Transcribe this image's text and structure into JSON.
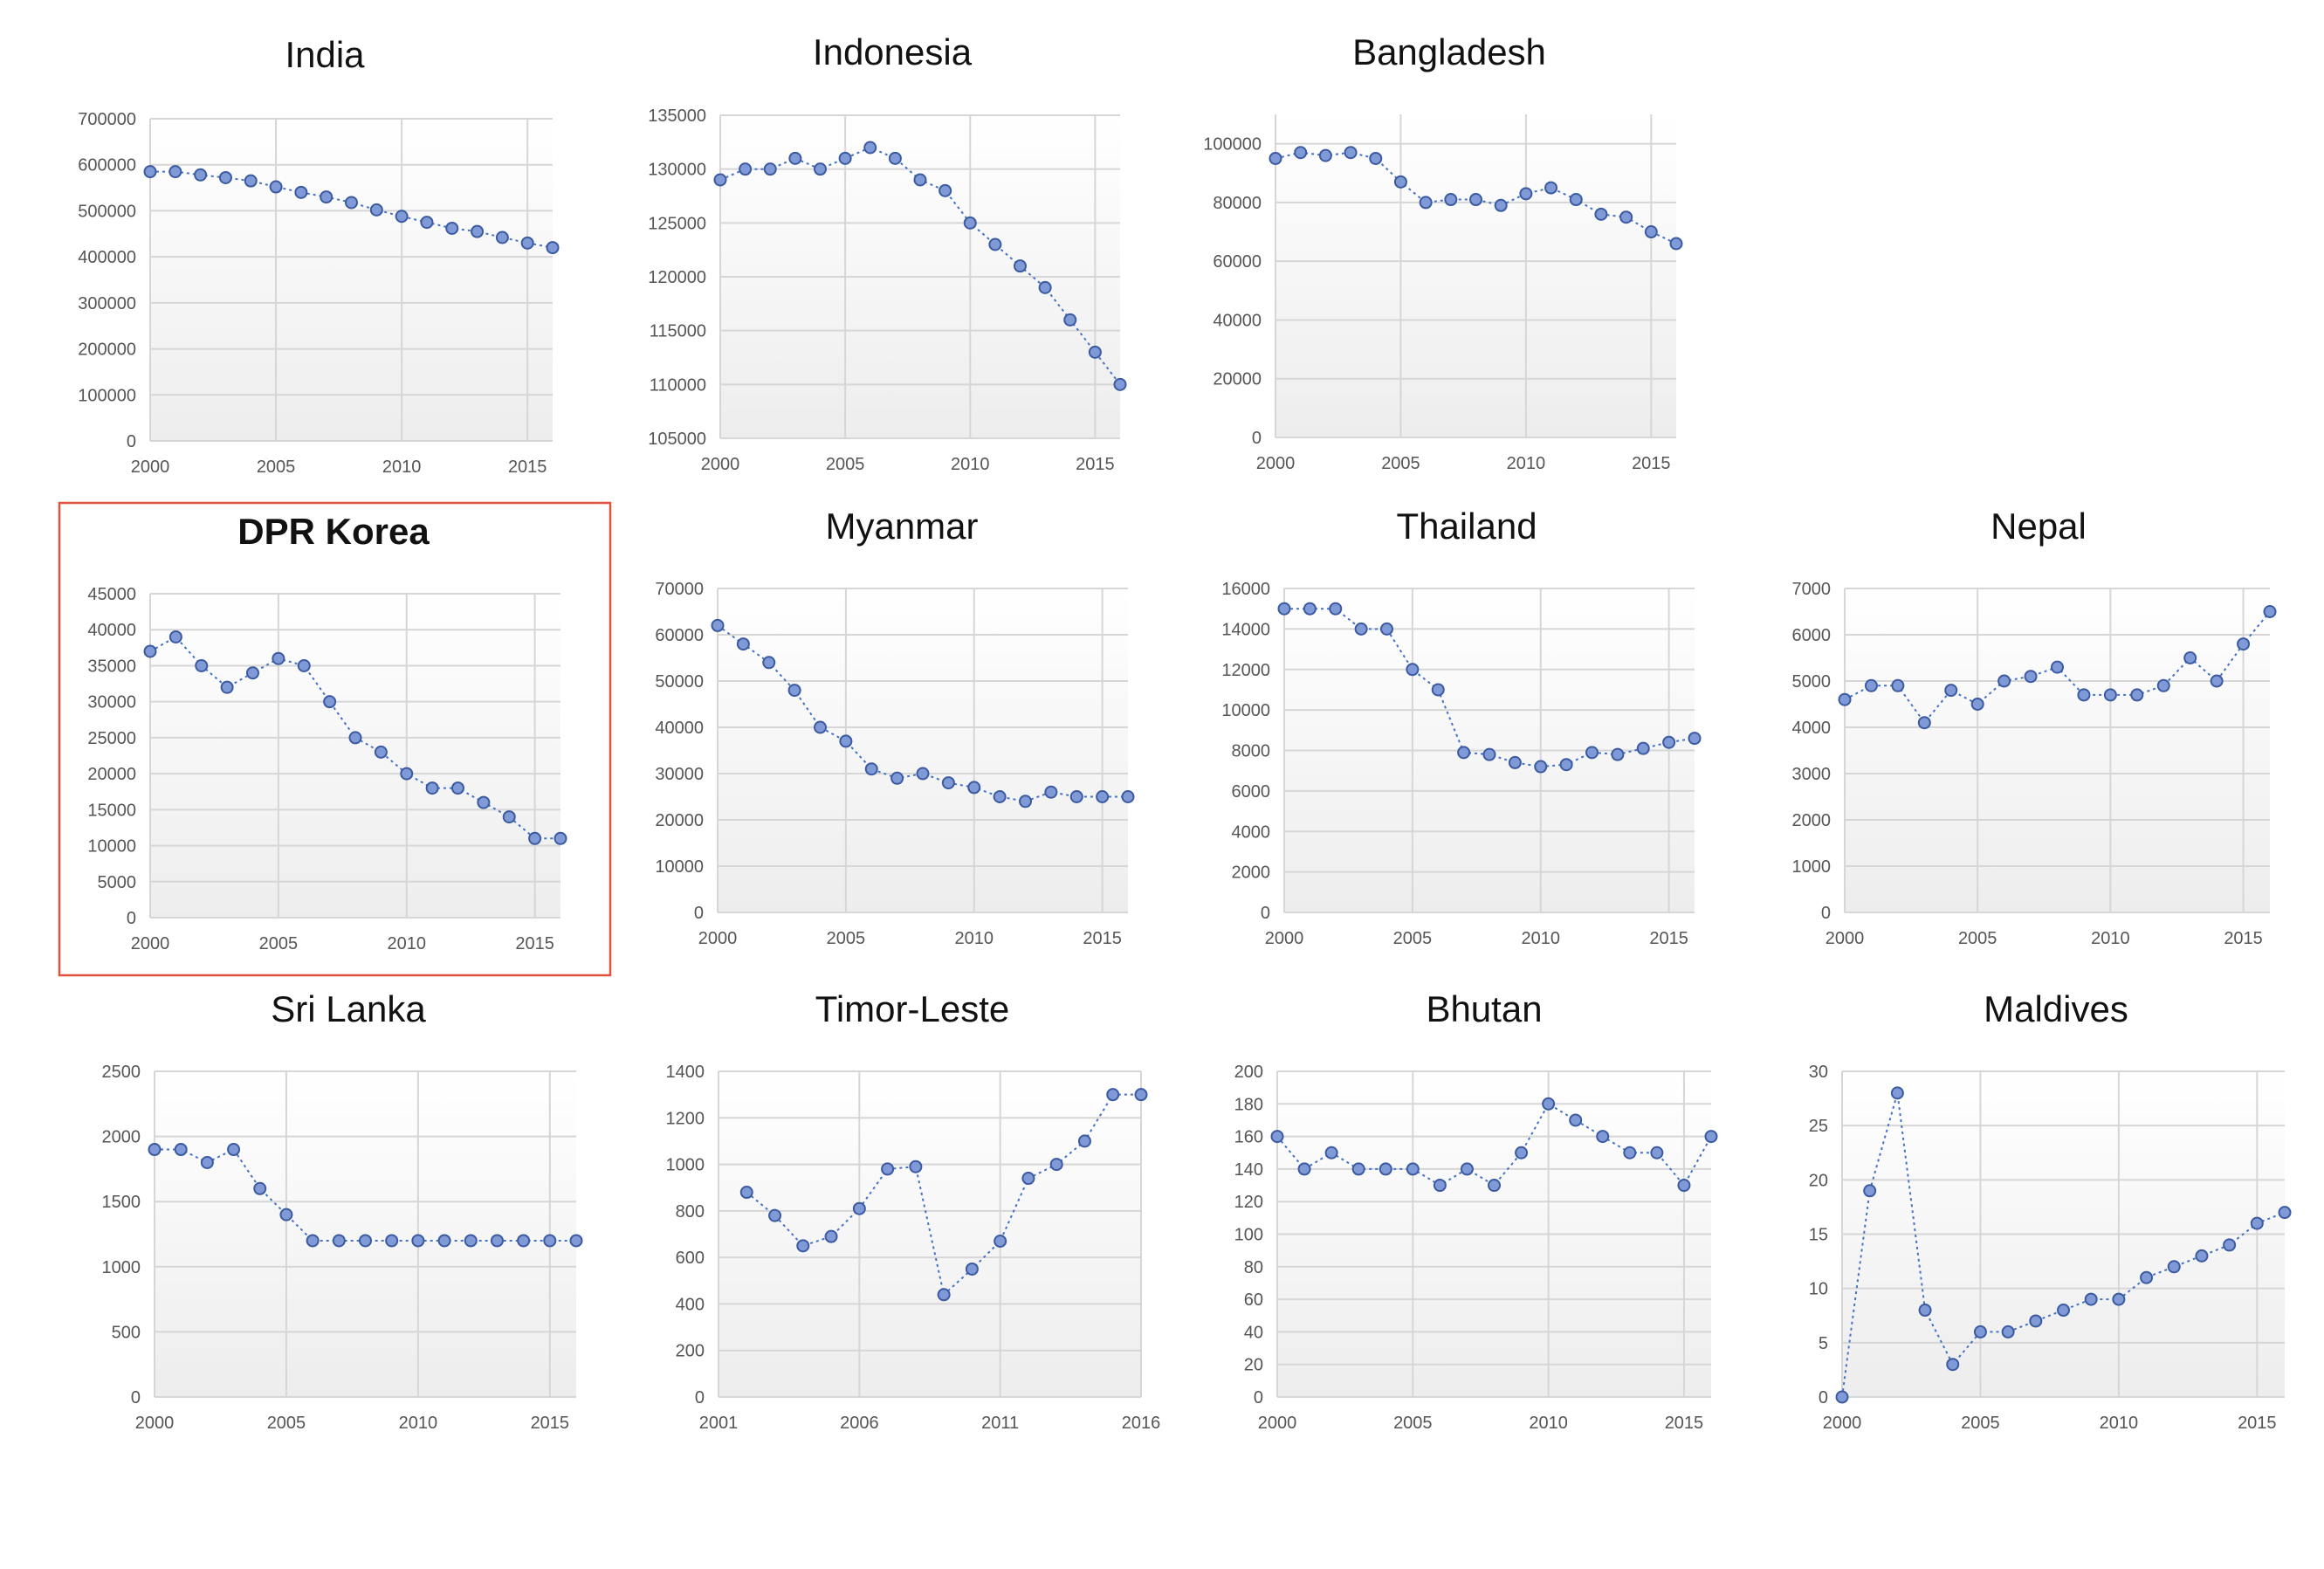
{
  "colors": {
    "series": "#4472c4",
    "marker_fill": "#7f9ad6",
    "highlight": "#e2523e"
  },
  "chart_data": [
    {
      "type": "line",
      "title": "India",
      "x": [
        2000,
        2001,
        2002,
        2003,
        2004,
        2005,
        2006,
        2007,
        2008,
        2009,
        2010,
        2011,
        2012,
        2013,
        2014,
        2015,
        2016
      ],
      "series": [
        {
          "values": [
            585000,
            585000,
            578000,
            572000,
            565000,
            552000,
            540000,
            530000,
            518000,
            502000,
            488000,
            475000,
            462000,
            455000,
            442000,
            430000,
            420000
          ]
        }
      ],
      "xticks": [
        "2000",
        "2005",
        "2010",
        "2015"
      ],
      "yticks": [
        "0",
        "100000",
        "200000",
        "300000",
        "400000",
        "500000",
        "600000",
        "700000"
      ],
      "xlim": [
        2000,
        2016
      ],
      "ylim": [
        0,
        700000
      ],
      "grid": true
    },
    {
      "type": "line",
      "title": "Indonesia",
      "x": [
        2000,
        2001,
        2002,
        2003,
        2004,
        2005,
        2006,
        2007,
        2008,
        2009,
        2010,
        2011,
        2012,
        2013,
        2014,
        2015,
        2016
      ],
      "series": [
        {
          "values": [
            129000,
            130000,
            130000,
            131000,
            130000,
            131000,
            132000,
            131000,
            129000,
            128000,
            125000,
            123000,
            121000,
            119000,
            116000,
            113000,
            110000
          ]
        }
      ],
      "xticks": [
        "2000",
        "2005",
        "2010",
        "2015"
      ],
      "yticks": [
        "105000",
        "110000",
        "115000",
        "120000",
        "125000",
        "130000",
        "135000"
      ],
      "xlim": [
        2000,
        2016
      ],
      "ylim": [
        105000,
        135000
      ],
      "grid": true
    },
    {
      "type": "line",
      "title": "Bangladesh",
      "x": [
        2000,
        2001,
        2002,
        2003,
        2004,
        2005,
        2006,
        2007,
        2008,
        2009,
        2010,
        2011,
        2012,
        2013,
        2014,
        2015,
        2016
      ],
      "series": [
        {
          "values": [
            95000,
            97000,
            96000,
            97000,
            95000,
            87000,
            80000,
            81000,
            81000,
            79000,
            83000,
            85000,
            81000,
            76000,
            75000,
            70000,
            66000
          ]
        }
      ],
      "xticks": [
        "2000",
        "2005",
        "2010",
        "2015"
      ],
      "yticks": [
        "0",
        "20000",
        "40000",
        "60000",
        "80000",
        "100000"
      ],
      "xlim": [
        2000,
        2016
      ],
      "ylim": [
        0,
        110000
      ],
      "grid": true
    },
    {
      "type": "line",
      "title": "DPR Korea",
      "highlighted": true,
      "x": [
        2000,
        2001,
        2002,
        2003,
        2004,
        2005,
        2006,
        2007,
        2008,
        2009,
        2010,
        2011,
        2012,
        2013,
        2014,
        2015,
        2016
      ],
      "series": [
        {
          "values": [
            37000,
            39000,
            35000,
            32000,
            34000,
            36000,
            35000,
            30000,
            25000,
            23000,
            20000,
            18000,
            18000,
            16000,
            14000,
            11000,
            11000
          ]
        }
      ],
      "xticks": [
        "2000",
        "2005",
        "2010",
        "2015"
      ],
      "yticks": [
        "0",
        "5000",
        "10000",
        "15000",
        "20000",
        "25000",
        "30000",
        "35000",
        "40000",
        "45000"
      ],
      "xlim": [
        2000,
        2016
      ],
      "ylim": [
        0,
        45000
      ],
      "grid": true
    },
    {
      "type": "line",
      "title": "Myanmar",
      "x": [
        2000,
        2001,
        2002,
        2003,
        2004,
        2005,
        2006,
        2007,
        2008,
        2009,
        2010,
        2011,
        2012,
        2013,
        2014,
        2015,
        2016
      ],
      "series": [
        {
          "values": [
            62000,
            58000,
            54000,
            48000,
            40000,
            37000,
            31000,
            29000,
            30000,
            28000,
            27000,
            25000,
            24000,
            26000,
            25000,
            25000,
            25000
          ]
        }
      ],
      "xticks": [
        "2000",
        "2005",
        "2010",
        "2015"
      ],
      "yticks": [
        "0",
        "10000",
        "20000",
        "30000",
        "40000",
        "50000",
        "60000",
        "70000"
      ],
      "xlim": [
        2000,
        2016
      ],
      "ylim": [
        0,
        70000
      ],
      "grid": true
    },
    {
      "type": "line",
      "title": "Thailand",
      "x": [
        2000,
        2001,
        2002,
        2003,
        2004,
        2005,
        2006,
        2007,
        2008,
        2009,
        2010,
        2011,
        2012,
        2013,
        2014,
        2015,
        2016
      ],
      "series": [
        {
          "values": [
            15000,
            15000,
            15000,
            14000,
            14000,
            12000,
            11000,
            7900,
            7800,
            7400,
            7200,
            7300,
            7900,
            7800,
            8100,
            8400,
            8600
          ]
        }
      ],
      "xticks": [
        "2000",
        "2005",
        "2010",
        "2015"
      ],
      "yticks": [
        "0",
        "2000",
        "4000",
        "6000",
        "8000",
        "10000",
        "12000",
        "14000",
        "16000"
      ],
      "xlim": [
        2000,
        2016
      ],
      "ylim": [
        0,
        16000
      ],
      "grid": true
    },
    {
      "type": "line",
      "title": "Nepal",
      "x": [
        2000,
        2001,
        2002,
        2003,
        2004,
        2005,
        2006,
        2007,
        2008,
        2009,
        2010,
        2011,
        2012,
        2013,
        2014,
        2015,
        2016
      ],
      "series": [
        {
          "values": [
            4600,
            4900,
            4900,
            4100,
            4800,
            4500,
            5000,
            5100,
            5300,
            4700,
            4700,
            4700,
            4900,
            5500,
            5000,
            5800,
            6500
          ]
        }
      ],
      "xticks": [
        "2000",
        "2005",
        "2010",
        "2015"
      ],
      "yticks": [
        "0",
        "1000",
        "2000",
        "3000",
        "4000",
        "5000",
        "6000",
        "7000"
      ],
      "xlim": [
        2000,
        2016
      ],
      "ylim": [
        0,
        7000
      ],
      "grid": true
    },
    {
      "type": "line",
      "title": "Sri Lanka",
      "x": [
        2000,
        2001,
        2002,
        2003,
        2004,
        2005,
        2006,
        2007,
        2008,
        2009,
        2010,
        2011,
        2012,
        2013,
        2014,
        2015,
        2016
      ],
      "series": [
        {
          "values": [
            1900,
            1900,
            1800,
            1900,
            1600,
            1400,
            1200,
            1200,
            1200,
            1200,
            1200,
            1200,
            1200,
            1200,
            1200,
            1200,
            1200
          ]
        }
      ],
      "xticks": [
        "2000",
        "2005",
        "2010",
        "2015"
      ],
      "yticks": [
        "0",
        "500",
        "1000",
        "1500",
        "2000",
        "2500"
      ],
      "xlim": [
        2000,
        2016
      ],
      "ylim": [
        0,
        2500
      ],
      "grid": true
    },
    {
      "type": "line",
      "title": "Timor-Leste",
      "x": [
        2002,
        2003,
        2004,
        2005,
        2006,
        2007,
        2008,
        2009,
        2010,
        2011,
        2012,
        2013,
        2014,
        2015,
        2016
      ],
      "series": [
        {
          "values": [
            880,
            780,
            650,
            690,
            810,
            980,
            990,
            440,
            550,
            670,
            940,
            1000,
            1100,
            1300,
            1300
          ]
        }
      ],
      "xticks": [
        "2001",
        "2006",
        "2011",
        "2016"
      ],
      "yticks": [
        "0",
        "200",
        "400",
        "600",
        "800",
        "1000",
        "1200",
        "1400"
      ],
      "xlim": [
        2001,
        2016
      ],
      "ylim": [
        0,
        1400
      ],
      "grid": true
    },
    {
      "type": "line",
      "title": "Bhutan",
      "x": [
        2000,
        2001,
        2002,
        2003,
        2004,
        2005,
        2006,
        2007,
        2008,
        2009,
        2010,
        2011,
        2012,
        2013,
        2014,
        2015,
        2016
      ],
      "series": [
        {
          "values": [
            160,
            140,
            150,
            140,
            140,
            140,
            130,
            140,
            130,
            150,
            180,
            170,
            160,
            150,
            150,
            130,
            160
          ]
        }
      ],
      "xticks": [
        "2000",
        "2005",
        "2010",
        "2015"
      ],
      "yticks": [
        "0",
        "20",
        "40",
        "60",
        "80",
        "100",
        "120",
        "140",
        "160",
        "180",
        "200"
      ],
      "xlim": [
        2000,
        2016
      ],
      "ylim": [
        0,
        200
      ],
      "grid": true
    },
    {
      "type": "line",
      "title": "Maldives",
      "x": [
        2000,
        2001,
        2002,
        2003,
        2004,
        2005,
        2006,
        2007,
        2008,
        2009,
        2010,
        2011,
        2012,
        2013,
        2014,
        2015,
        2016
      ],
      "series": [
        {
          "values": [
            0,
            19,
            28,
            8,
            3,
            6,
            6,
            7,
            8,
            9,
            9,
            11,
            12,
            13,
            14,
            16,
            17
          ]
        }
      ],
      "xticks": [
        "2000",
        "2005",
        "2010",
        "2015"
      ],
      "yticks": [
        "0",
        "5",
        "10",
        "15",
        "20",
        "25",
        "30"
      ],
      "xlim": [
        2000,
        2016
      ],
      "ylim": [
        0,
        30
      ],
      "grid": true
    }
  ]
}
